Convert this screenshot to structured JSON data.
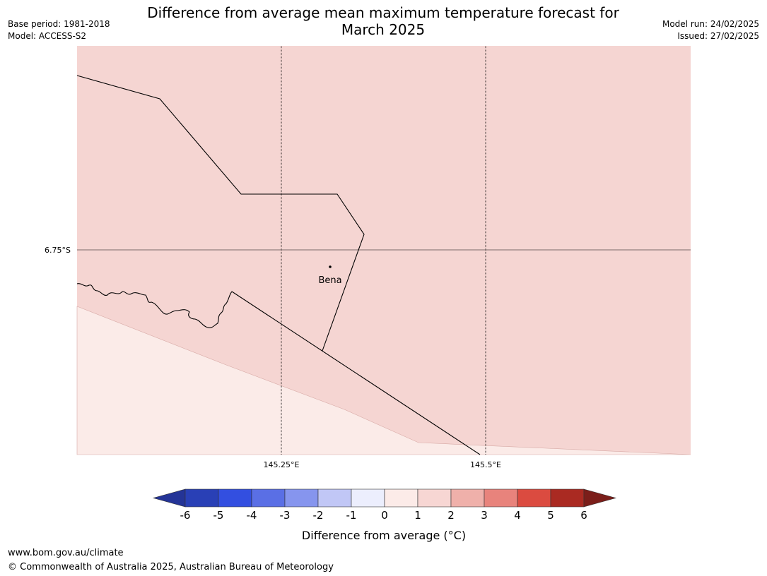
{
  "header": {
    "title_line1": "Difference from average mean maximum temperature forecast for",
    "title_line2": "March 2025",
    "base_period": "Base period: 1981-2018",
    "model": "Model: ACCESS-S2",
    "model_run": "Model run: 24/02/2025",
    "issued": "Issued: 27/02/2025"
  },
  "map": {
    "place_label": "Bena",
    "lat_label": "6.75°S",
    "lon_labels": [
      "145.25°E",
      "145.5°E"
    ],
    "fill_colors": {
      "band_1_to_2": "#f5d5d2",
      "band_0_to_1": "#fbebe8"
    }
  },
  "colorbar": {
    "label": "Difference from average (°C)",
    "ticks": [
      "-6",
      "-5",
      "-4",
      "-3",
      "-2",
      "-1",
      "0",
      "1",
      "2",
      "3",
      "4",
      "5",
      "6"
    ],
    "colors": [
      "#243497",
      "#2940b6",
      "#334fe0",
      "#5a6fe5",
      "#8695ee",
      "#c1c7f6",
      "#eceefd",
      "#fcebe8",
      "#f7d6d3",
      "#efb0aa",
      "#e8837c",
      "#db4b40",
      "#aa2a22",
      "#7b1e1a"
    ]
  },
  "footer": {
    "url": "www.bom.gov.au/climate",
    "copyright": "© Commonwealth of Australia 2025, Australian Bureau of Meteorology"
  }
}
